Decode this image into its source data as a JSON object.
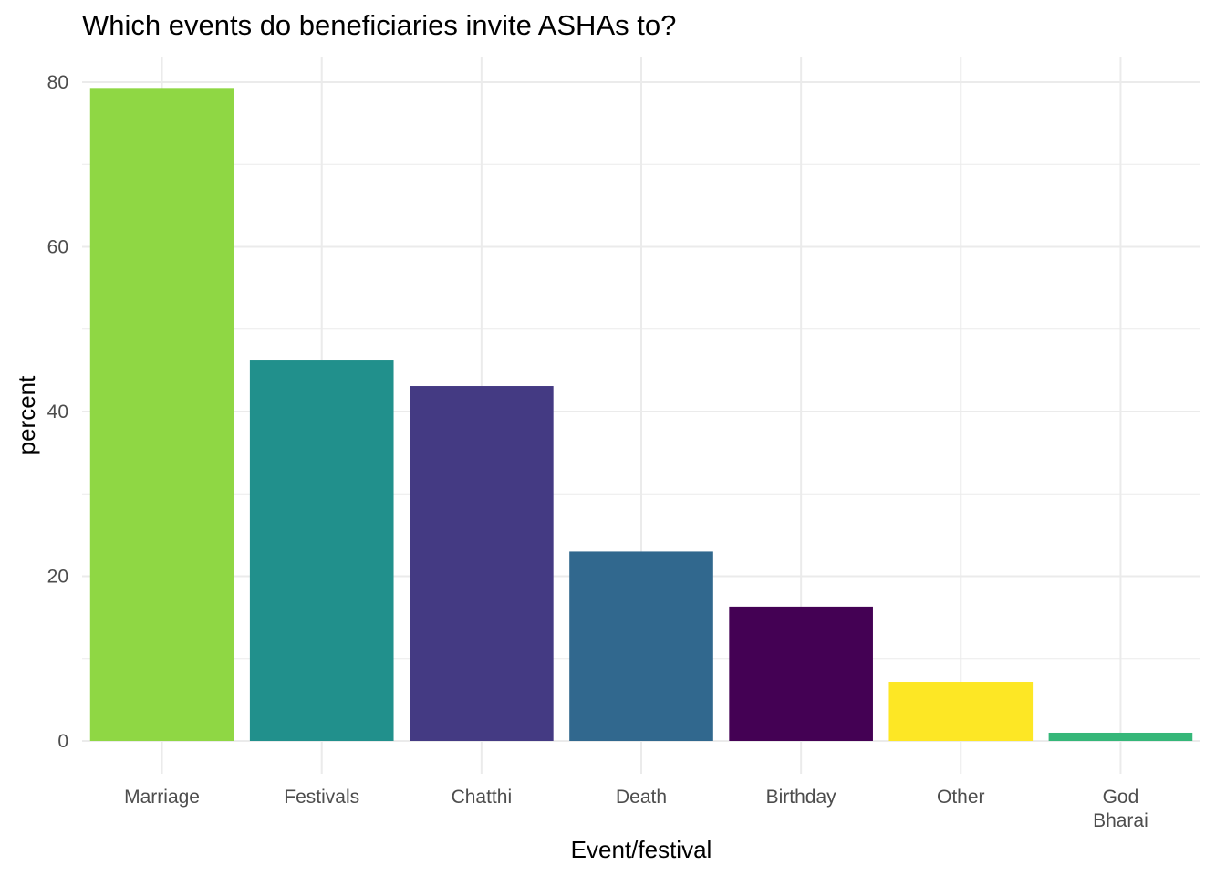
{
  "chart_data": {
    "type": "bar",
    "title": "Which events do beneficiaries invite ASHAs to?",
    "xlabel": "Event/festival",
    "ylabel": "percent",
    "ylim": [
      0,
      83
    ],
    "yticks": [
      0,
      20,
      40,
      60,
      80
    ],
    "grid": true,
    "categories": [
      "Marriage",
      "Festivals",
      "Chatthi",
      "Death",
      "Birthday",
      "Other",
      "God Bharai"
    ],
    "category_lines": [
      [
        "Marriage"
      ],
      [
        "Festivals"
      ],
      [
        "Chatthi"
      ],
      [
        "Death"
      ],
      [
        "Birthday"
      ],
      [
        "Other"
      ],
      [
        "God",
        "Bharai"
      ]
    ],
    "values": [
      79.3,
      46.2,
      43.1,
      23.0,
      16.3,
      7.2,
      1.0
    ],
    "colors": [
      "#8FD744",
      "#21908C",
      "#443A83",
      "#31688E",
      "#440154",
      "#FDE725",
      "#35B779"
    ]
  }
}
